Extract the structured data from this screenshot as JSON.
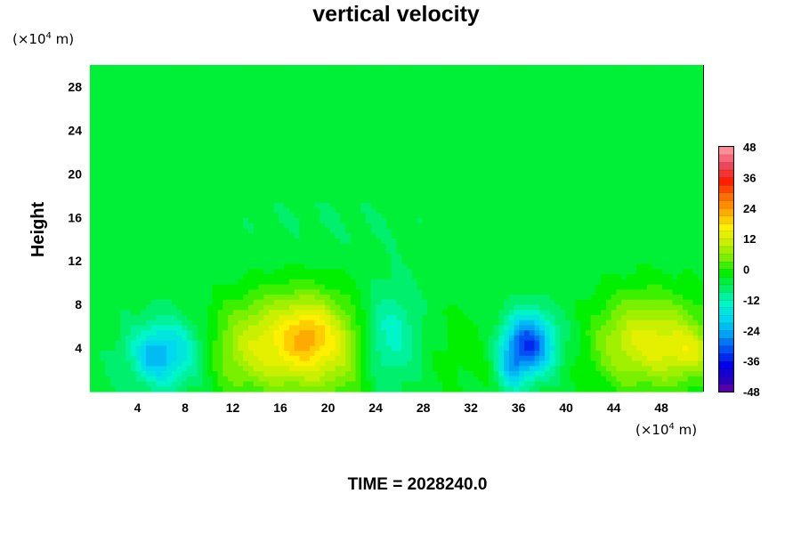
{
  "chart_data": {
    "type": "heatmap",
    "title": "vertical velocity",
    "ylabel": "Height",
    "y_unit_prefix": "(×10",
    "y_unit_exp": "4",
    "y_unit_suffix": " m)",
    "x_unit_prefix": "(×10",
    "x_unit_exp": "4",
    "x_unit_suffix": " m)",
    "xlim": [
      0,
      51.5
    ],
    "ylim": [
      0,
      30
    ],
    "x_ticks": [
      4,
      8,
      12,
      16,
      20,
      24,
      28,
      32,
      36,
      40,
      44,
      48
    ],
    "y_ticks": [
      4,
      8,
      12,
      16,
      20,
      24,
      28
    ],
    "background_value": -3,
    "features": [
      {
        "x": 6.5,
        "y": 3.5,
        "sx": 2.2,
        "sy": 2.2,
        "value": -15
      },
      {
        "x": 5.3,
        "y": 3.2,
        "sx": 1.0,
        "sy": 1.4,
        "value": -6
      },
      {
        "x": 17.5,
        "y": 4.5,
        "sx": 3.5,
        "sy": 3.2,
        "value": 22
      },
      {
        "x": 18.5,
        "y": 5.5,
        "sx": 1.2,
        "sy": 1.8,
        "value": 6
      },
      {
        "x": 25.0,
        "y": 5.0,
        "sx": 1.8,
        "sy": 3.0,
        "value": -11
      },
      {
        "x": 36.8,
        "y": 4.3,
        "sx": 1.5,
        "sy": 2.0,
        "value": -30
      },
      {
        "x": 35.3,
        "y": 2.0,
        "sx": 0.8,
        "sy": 1.5,
        "value": -10
      },
      {
        "x": 47.0,
        "y": 4.5,
        "sx": 3.5,
        "sy": 3.0,
        "value": 18
      },
      {
        "x": 50.5,
        "y": 3.5,
        "sx": 1.2,
        "sy": 1.5,
        "value": 8
      },
      {
        "x": 12.0,
        "y": 3.5,
        "sx": 2.0,
        "sy": 3.0,
        "value": 6
      },
      {
        "x": 32.0,
        "y": 4.0,
        "sx": 3.0,
        "sy": 3.0,
        "value": 3
      },
      {
        "x": 21.5,
        "y": 3.0,
        "sx": 1.5,
        "sy": 3.0,
        "value": 4
      },
      {
        "x": 41.0,
        "y": 5.0,
        "sx": 1.5,
        "sy": 2.5,
        "value": -2
      },
      {
        "x": 20.0,
        "y": 15.5,
        "sx": 10.0,
        "sy": 3.0,
        "value": -1.5
      }
    ],
    "colorbar": {
      "min": -48,
      "max": 48,
      "step": 3,
      "tick_labels": [
        "48",
        "36",
        "24",
        "12",
        "0",
        "-12",
        "-24",
        "-36",
        "-48"
      ],
      "tick_values": [
        48,
        36,
        24,
        12,
        0,
        -12,
        -24,
        -36,
        -48
      ]
    },
    "annotation": "TIME = 2028240.0"
  }
}
